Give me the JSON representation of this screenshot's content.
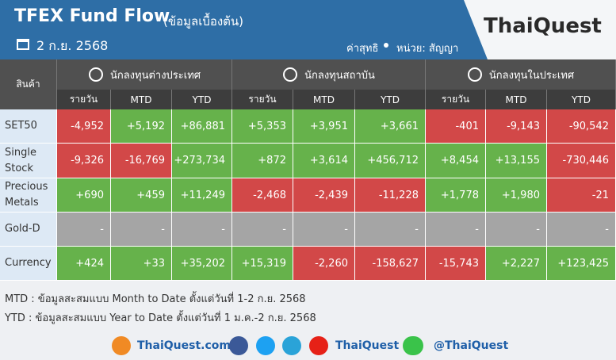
{
  "header": {
    "title": "TFEX Fund Flow",
    "subtitle": "(ข้อมูลเบื้องต้น)",
    "date": "2 ก.ย. 2568",
    "note": "ค่าสุทธิ",
    "unit": "หน่วย: สัญญา",
    "logo": "ThaiQuest"
  },
  "table": {
    "corner": "สินค้า",
    "groups": [
      "นักลงทุนต่างประเทศ",
      "นักลงทุนสถาบัน",
      "นักลงทุนในประเทศ"
    ],
    "subheaders": [
      "รายวัน",
      "MTD",
      "YTD",
      "รายวัน",
      "MTD",
      "YTD",
      "รายวัน",
      "MTD",
      "YTD"
    ],
    "rows": [
      {
        "label": "SET50",
        "cells": [
          "-4,952",
          "+5,192",
          "+86,881",
          "+5,353",
          "+3,951",
          "+3,661",
          "-401",
          "-9,143",
          "-90,542"
        ]
      },
      {
        "label": "Single Stock",
        "cells": [
          "-9,326",
          "-16,769",
          "+273,734",
          "+872",
          "+3,614",
          "+456,712",
          "+8,454",
          "+13,155",
          "-730,446"
        ]
      },
      {
        "label": "Precious Metals",
        "cells": [
          "+690",
          "+459",
          "+11,249",
          "-2,468",
          "-2,439",
          "-11,228",
          "+1,778",
          "+1,980",
          "-21"
        ]
      },
      {
        "label": "Gold-D",
        "cells": [
          "-",
          "-",
          "-",
          "-",
          "-",
          "-",
          "-",
          "-",
          "-"
        ]
      },
      {
        "label": "Currency",
        "cells": [
          "+424",
          "+33",
          "+35,202",
          "+15,319",
          "-2,260",
          "-158,627",
          "-15,743",
          "+2,227",
          "+123,425"
        ]
      }
    ]
  },
  "footnotes": [
    "MTD : ข้อมูลสะสมแบบ Month to Date ตั้งแต่วันที่ 1-2 ก.ย. 2568",
    "YTD : ข้อมูลสะสมแบบ Year to Date ตั้งแต่วันที่ 1 ม.ค.-2 ก.ย. 2568"
  ],
  "footer": {
    "website": "ThaiQuest.com",
    "youtube": "ThaiQuest",
    "line": "@ThaiQuest"
  }
}
